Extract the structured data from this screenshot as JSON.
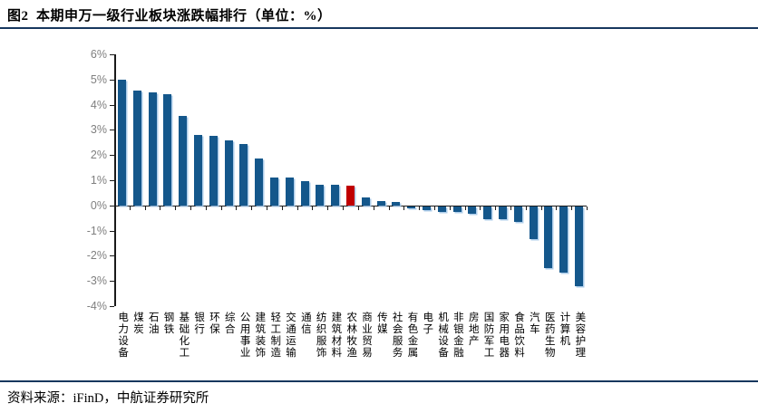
{
  "figure": {
    "title": "图2  本期申万一级行业板块涨跌幅排行（单位：%）",
    "source": "资料来源：iFinD，中航证券研究所"
  },
  "colors": {
    "rule_navy": "#17375E",
    "bar_blue": "#14578B",
    "bar_highlight_red": "#C00000",
    "axis_black": "#1a1a1a",
    "ytick_label_gray": "#7F7F7F"
  },
  "chart_data": {
    "type": "bar",
    "title": "本期申万一级行业板块涨跌幅排行",
    "unit": "%",
    "categories": [
      "电力设备",
      "煤炭",
      "石油",
      "钢铁",
      "基础化工",
      "银行",
      "环保",
      "综合",
      "公用事业",
      "建筑装饰",
      "轻工制造",
      "交通运输",
      "通信",
      "纺织服饰",
      "建筑材料",
      "农林牧渔",
      "商业贸易",
      "传媒",
      "社会服务",
      "有色金属",
      "电子",
      "机械设备",
      "非银金融",
      "房地产",
      "国防军工",
      "家用电器",
      "食品饮料",
      "汽车",
      "医药生物",
      "计算机",
      "美容护理"
    ],
    "values": [
      5.0,
      4.55,
      4.5,
      4.4,
      3.55,
      2.8,
      2.75,
      2.6,
      2.45,
      1.88,
      1.12,
      1.1,
      0.95,
      0.82,
      0.82,
      0.79,
      0.32,
      0.18,
      0.12,
      -0.07,
      -0.15,
      -0.2,
      -0.22,
      -0.27,
      -0.5,
      -0.5,
      -0.6,
      -1.27,
      -2.45,
      -2.6,
      -3.15
    ],
    "highlight_index": 15,
    "highlight_category": "农林牧渔",
    "ylim": [
      -4,
      6
    ],
    "y_ticks": [
      "6%",
      "5%",
      "4%",
      "3%",
      "2%",
      "1%",
      "0%",
      "-1%",
      "-2%",
      "-3%",
      "-4%"
    ],
    "grid": false,
    "legend_position": "none"
  }
}
